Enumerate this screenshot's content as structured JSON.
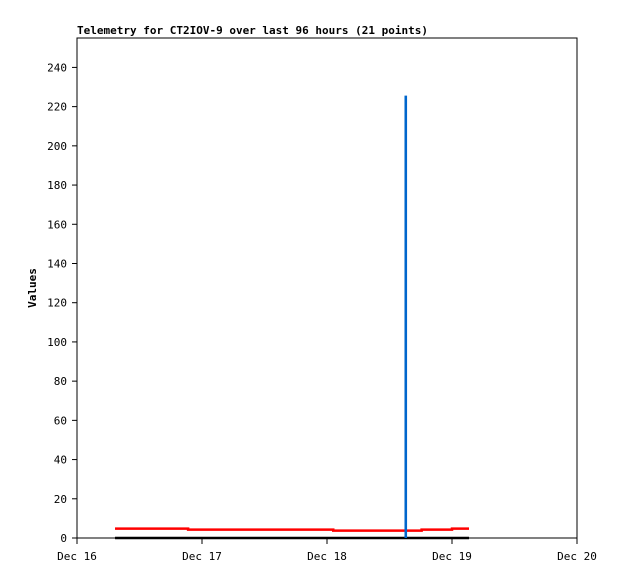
{
  "chart_data": {
    "type": "line",
    "title": "Telemetry for CT2IOV-9 over last 96 hours (21 points)",
    "xlabel": "",
    "ylabel": "Values",
    "xlim": [
      "Dec 16 00:00",
      "Dec 20 00:00"
    ],
    "ylim": [
      0,
      255
    ],
    "x_ticks": [
      "Dec 16",
      "Dec 17",
      "Dec 18",
      "Dec 19",
      "Dec 20"
    ],
    "y_ticks": [
      0,
      20,
      40,
      60,
      80,
      100,
      120,
      140,
      160,
      180,
      200,
      220,
      240
    ],
    "grid": false,
    "step": true,
    "series": [
      {
        "color": "#ff0000",
        "points": [
          [
            "Dec 16 07:18",
            4.75
          ],
          [
            "Dec 16 21:20",
            4.24
          ],
          [
            "Dec 18 01:12",
            3.73
          ],
          [
            "Dec 18 18:10",
            4.24
          ],
          [
            "Dec 19 00:00",
            4.75
          ],
          [
            "Dec 19 03:16",
            4.75
          ]
        ]
      },
      {
        "color": "#000000",
        "points": [
          [
            "Dec 16 07:18",
            0
          ],
          [
            "Dec 19 03:16",
            0
          ]
        ]
      },
      {
        "color": "#0066cc",
        "points": [
          [
            "Dec 18 15:07",
            0
          ],
          [
            "Dec 18 15:07",
            225
          ],
          [
            "Dec 18 15:08",
            0
          ]
        ]
      }
    ]
  }
}
